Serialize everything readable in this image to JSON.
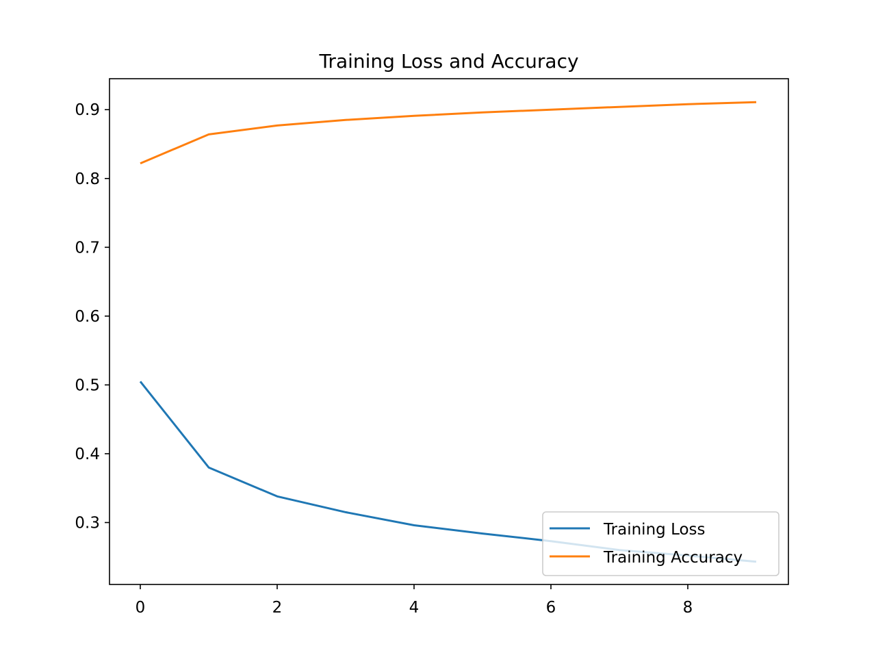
{
  "chart_data": {
    "type": "line",
    "title": "Training Loss and Accuracy",
    "xlabel": "",
    "ylabel": "",
    "x": [
      0,
      1,
      2,
      3,
      4,
      5,
      6,
      7,
      8,
      9
    ],
    "series": [
      {
        "name": "Training Loss",
        "color": "#1f77b4",
        "values": [
          0.505,
          0.38,
          0.338,
          0.315,
          0.296,
          0.284,
          0.273,
          0.26,
          0.252,
          0.243
        ]
      },
      {
        "name": "Training Accuracy",
        "color": "#ff7f0e",
        "values": [
          0.822,
          0.864,
          0.877,
          0.885,
          0.891,
          0.896,
          0.9,
          0.904,
          0.908,
          0.911
        ]
      }
    ],
    "xlim": [
      -0.45,
      9.47
    ],
    "ylim": [
      0.21,
      0.945
    ],
    "xticks": [
      0,
      2,
      4,
      6,
      8
    ],
    "xtick_labels": [
      "0",
      "2",
      "4",
      "6",
      "8"
    ],
    "yticks": [
      0.3,
      0.4,
      0.5,
      0.6,
      0.7,
      0.8,
      0.9
    ],
    "ytick_labels": [
      "0.3",
      "0.4",
      "0.5",
      "0.6",
      "0.7",
      "0.8",
      "0.9"
    ],
    "grid": false,
    "legend_position": "lower right"
  }
}
